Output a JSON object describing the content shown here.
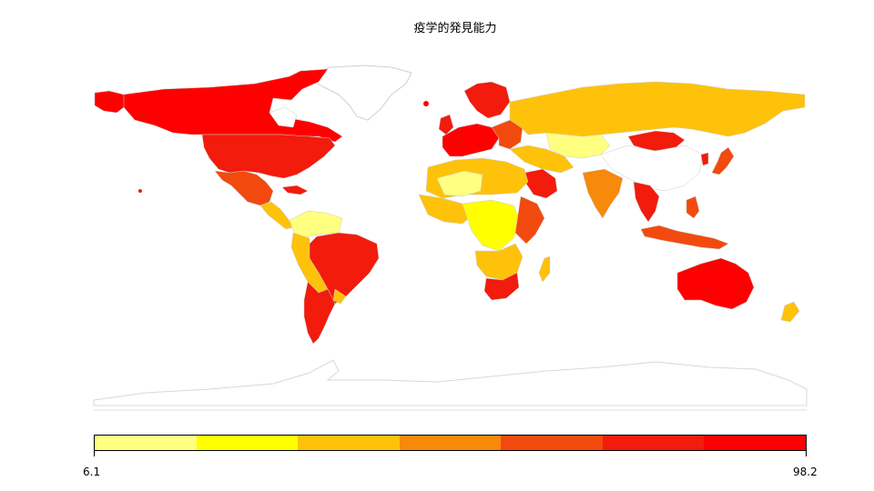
{
  "map": {
    "title": "疫学的発見能力",
    "legend": {
      "min_label": "6.1",
      "max_label": "98.2",
      "bins": [
        "#ffff80",
        "#ffff00",
        "#ffc20a",
        "#f7890b",
        "#f24a0e",
        "#f21b0c",
        "#ff0000"
      ]
    },
    "colors": {
      "land_default": "#ffffff",
      "land_outline": "#d8d8d8",
      "border": "#cccccc"
    }
  }
}
